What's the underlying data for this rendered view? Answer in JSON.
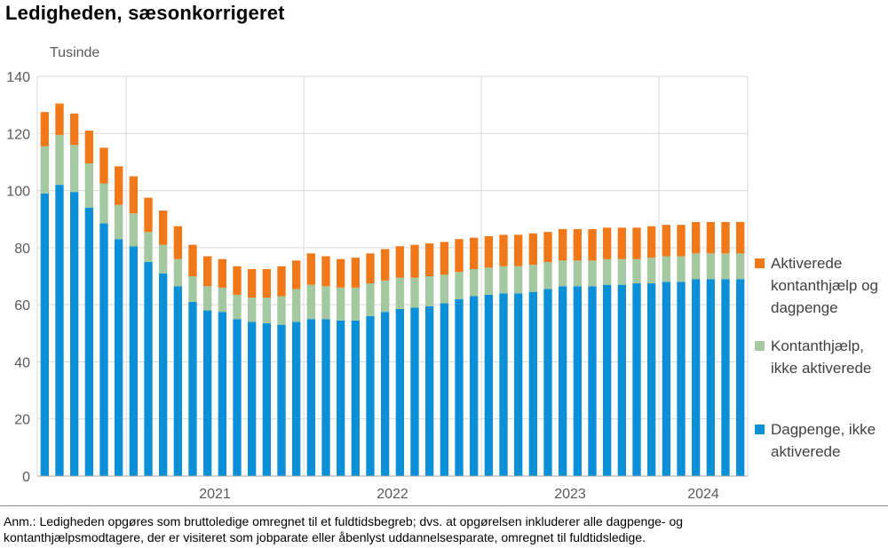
{
  "chart_data": {
    "type": "bar",
    "stacked": true,
    "title": "Ledigheden, sæsonkorrigeret",
    "ylabel": "Tusinde",
    "ylim": [
      0,
      140
    ],
    "yticks": [
      0,
      20,
      40,
      60,
      80,
      100,
      120,
      140
    ],
    "grid": true,
    "legend_position": "right",
    "x_year_labels": [
      "2021",
      "2022",
      "2023",
      "2024"
    ],
    "series": [
      {
        "name": "Dagpenge, ikke aktiverede",
        "color": "#0b8fd6",
        "values": [
          99,
          102,
          99.5,
          94,
          88.5,
          83,
          80.5,
          75,
          71,
          66.5,
          61,
          58,
          57.5,
          55,
          54,
          53.5,
          53,
          54,
          55,
          55,
          54.5,
          54.5,
          56,
          57.5,
          58.5,
          59,
          59.5,
          60.5,
          62,
          63,
          63.5,
          64,
          64,
          64.5,
          65.5,
          66.5,
          66.5,
          66.5,
          67,
          67,
          67.5,
          67.5,
          68,
          68,
          69,
          69,
          69,
          69
        ]
      },
      {
        "name": "Kontanthjælp, ikke aktiverede",
        "color": "#a4c9a0",
        "values": [
          16.5,
          17.5,
          16.5,
          15.5,
          14,
          12,
          11.5,
          10.5,
          10,
          9.5,
          9,
          8.5,
          8.5,
          8.5,
          8.5,
          9,
          10,
          11.5,
          12,
          11.5,
          11.5,
          11.5,
          11.5,
          11,
          11,
          10.5,
          10.5,
          10,
          9.5,
          9.5,
          9.5,
          9.5,
          9.5,
          9.5,
          9.5,
          9,
          9,
          9,
          9,
          9,
          8.5,
          9,
          9,
          9,
          9,
          9,
          9,
          9
        ]
      },
      {
        "name": "Aktiverede kontanthjælp og dagpenge",
        "color": "#f07818",
        "values": [
          12,
          11,
          11,
          11.5,
          12.5,
          13.5,
          13,
          12,
          12,
          11.5,
          11,
          10.5,
          10,
          10,
          10,
          10,
          10.5,
          10,
          11,
          10.5,
          10,
          10.5,
          10.5,
          11,
          11,
          11.5,
          11.5,
          11.5,
          11.5,
          11,
          11,
          11,
          11,
          11,
          10.5,
          11,
          11,
          11,
          11,
          11,
          11,
          11,
          11,
          11,
          11,
          11,
          11,
          11
        ]
      }
    ]
  },
  "legend": [
    {
      "lines": [
        "Aktiverede",
        "kontanthjælp og",
        "dagpenge"
      ],
      "color": "#f07818"
    },
    {
      "lines": [
        "Kontanthjælp,",
        "ikke aktiverede"
      ],
      "color": "#a4c9a0"
    },
    {
      "lines": [
        "Dagpenge, ikke",
        "aktiverede"
      ],
      "color": "#0b8fd6"
    }
  ],
  "footnote": {
    "lines": [
      "Anm.: Ledigheden opgøres som bruttoledige omregnet til et fuldtidsbegreb; dvs. at opgørelsen inkluderer alle dagpenge- og",
      "kontanthjælpsmodtagere, der er visiteret som jobparate eller åbenlyst uddannelsesparate, omregnet til fuldtidsledige."
    ]
  }
}
